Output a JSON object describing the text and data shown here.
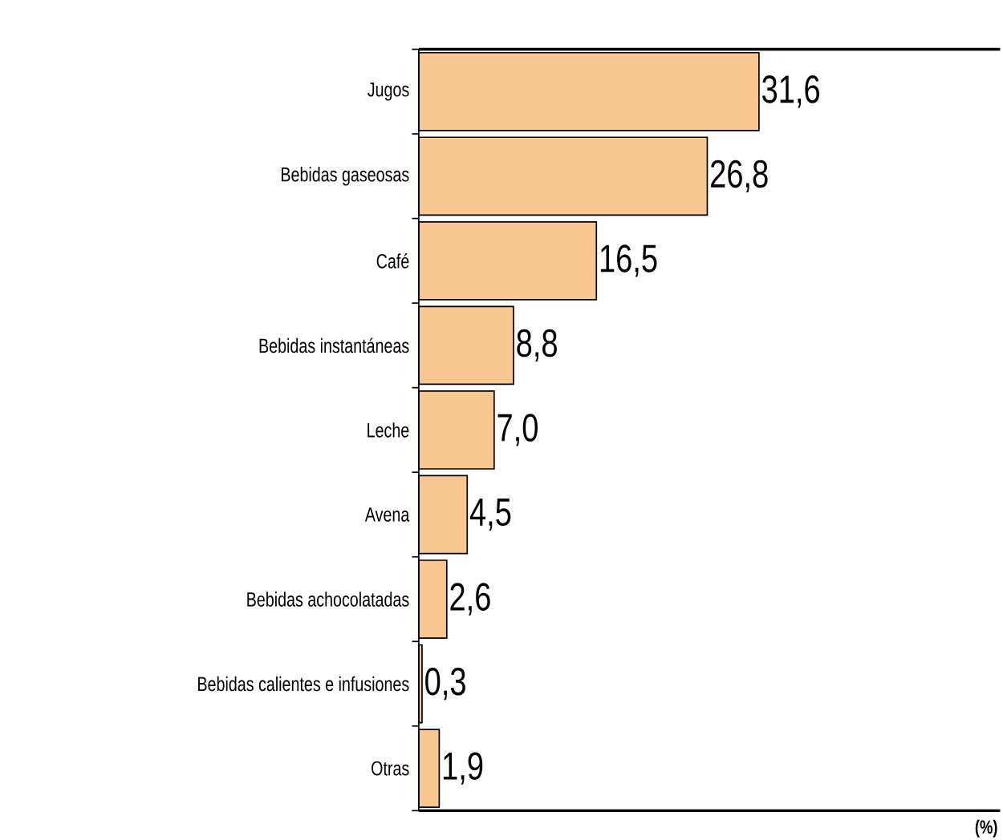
{
  "chart_data": {
    "type": "bar",
    "orientation": "horizontal",
    "xlabel": "(%)",
    "tick_labels": "y",
    "xlim": [
      0,
      54
    ],
    "color": "#f8c690",
    "categories": [
      "Jugos",
      "Bebidas gaseosas",
      "Café",
      "Bebidas instantáneas",
      "Leche",
      "Avena",
      "Bebidas achocolatadas",
      "Bebidas calientes e infusiones",
      "Otras"
    ],
    "values": [
      31.6,
      26.8,
      16.5,
      8.8,
      7.0,
      4.5,
      2.6,
      0.3,
      1.9
    ],
    "value_labels": [
      "31,6",
      "26,8",
      "16,5",
      "8,8",
      "7,0",
      "4,5",
      "2,6",
      "0,3",
      "1,9"
    ]
  }
}
